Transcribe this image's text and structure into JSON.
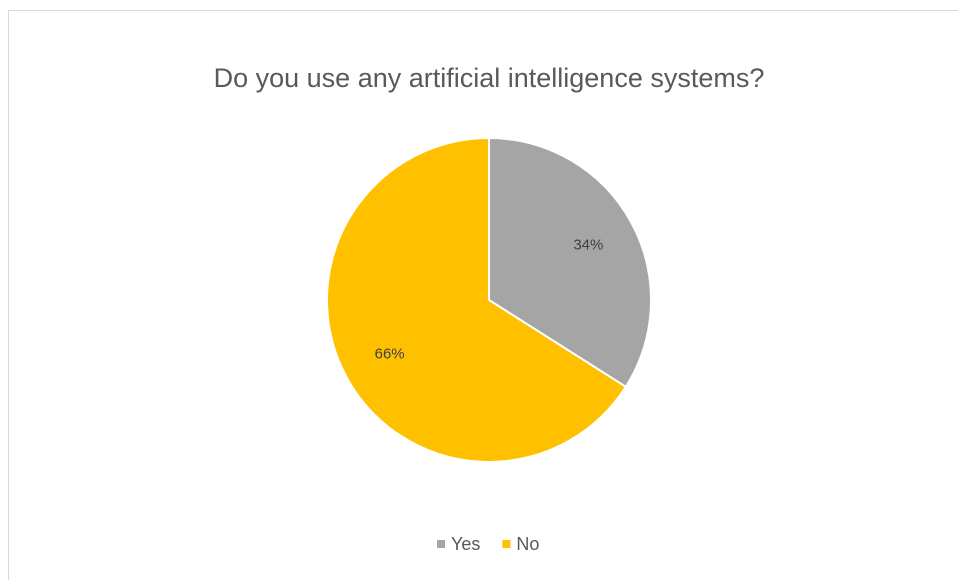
{
  "chart_data": {
    "type": "pie",
    "title": "Do you use any artificial intelligence systems?",
    "categories": [
      "Yes",
      "No"
    ],
    "values": [
      34,
      66
    ],
    "value_labels": [
      "34%",
      "66%"
    ],
    "colors": [
      "#a5a5a5",
      "#ffc000"
    ],
    "legend": "bottom"
  }
}
